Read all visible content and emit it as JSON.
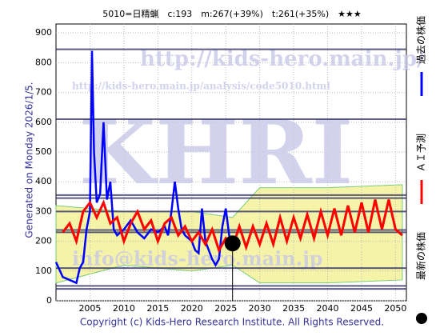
{
  "chart_data": {
    "type": "line",
    "title": "5010=日精蝋　c:193　m:267(+39%)　t:261(+35%)　★★★",
    "side_note": "Generated on Monday 2026/1/5.",
    "footer": "Copyright (c) Kids-Hero Research Institute. All Rights Reserved.",
    "watermarks": [
      "http://kids-hero.main.jp/",
      "http://kids-hero.main.jp/analysis/code5010.html",
      "KHRI",
      "info@kids-hero.main.jp"
    ],
    "xlim": [
      2000,
      2051.6
    ],
    "ylim": [
      0,
      930
    ],
    "xticks": [
      2005,
      2010,
      2015,
      2020,
      2025,
      2030,
      2035,
      2040,
      2045,
      2050
    ],
    "yticks": [
      0,
      100,
      200,
      300,
      400,
      500,
      600,
      700,
      800,
      900
    ],
    "grid": true,
    "levels": [
      845,
      610,
      355,
      345,
      300,
      238,
      230,
      110,
      50,
      40
    ],
    "band": {
      "color": "#f5f3a8",
      "x": [
        2000,
        2010,
        2020,
        2026,
        2030,
        2040,
        2051
      ],
      "lower": [
        60,
        120,
        100,
        120,
        60,
        60,
        70
      ],
      "upper": [
        320,
        300,
        300,
        280,
        380,
        380,
        390
      ]
    },
    "series": [
      {
        "name": "過去の株価",
        "color": "#0000ff",
        "x": [
          2000,
          2001,
          2002,
          2003,
          2003.5,
          2004,
          2004.5,
          2005,
          2005.3,
          2005.6,
          2006,
          2006.5,
          2007,
          2007.5,
          2008,
          2008.5,
          2009,
          2010,
          2011,
          2012,
          2013,
          2014,
          2015,
          2016,
          2016.5,
          2017,
          2017.5,
          2018,
          2018.5,
          2019,
          2020,
          2020.5,
          2021,
          2021.5,
          2022,
          2023,
          2023.5,
          2024,
          2024.5,
          2025,
          2025.5,
          2026
        ],
        "values": [
          130,
          80,
          70,
          60,
          110,
          130,
          240,
          300,
          840,
          500,
          330,
          360,
          600,
          340,
          400,
          240,
          220,
          240,
          270,
          230,
          210,
          240,
          230,
          250,
          220,
          300,
          400,
          310,
          240,
          220,
          200,
          170,
          160,
          310,
          200,
          140,
          120,
          140,
          250,
          310,
          220,
          193
        ]
      },
      {
        "name": "ＡＩ予測",
        "color": "#ff0000",
        "x": [
          2001,
          2002,
          2003,
          2004,
          2005,
          2006,
          2007,
          2008,
          2009,
          2010,
          2011,
          2012,
          2013,
          2014,
          2015,
          2016,
          2017,
          2018,
          2019,
          2020,
          2021,
          2022,
          2023,
          2024,
          2025,
          2026,
          2027,
          2028,
          2029,
          2030,
          2031,
          2032,
          2033,
          2034,
          2035,
          2036,
          2037,
          2038,
          2039,
          2040,
          2041,
          2042,
          2043,
          2044,
          2045,
          2046,
          2047,
          2048,
          2049,
          2050,
          2051
        ],
        "values": [
          230,
          260,
          200,
          300,
          330,
          280,
          330,
          260,
          280,
          200,
          260,
          300,
          240,
          270,
          200,
          260,
          280,
          220,
          250,
          200,
          230,
          190,
          240,
          170,
          210,
          180,
          250,
          180,
          250,
          190,
          260,
          190,
          280,
          200,
          280,
          210,
          290,
          210,
          300,
          220,
          310,
          220,
          320,
          230,
          330,
          230,
          340,
          240,
          340,
          240,
          220
        ]
      },
      {
        "name": "最新の株価",
        "color": "#000000",
        "x": [
          2026
        ],
        "values": [
          193
        ]
      }
    ]
  }
}
